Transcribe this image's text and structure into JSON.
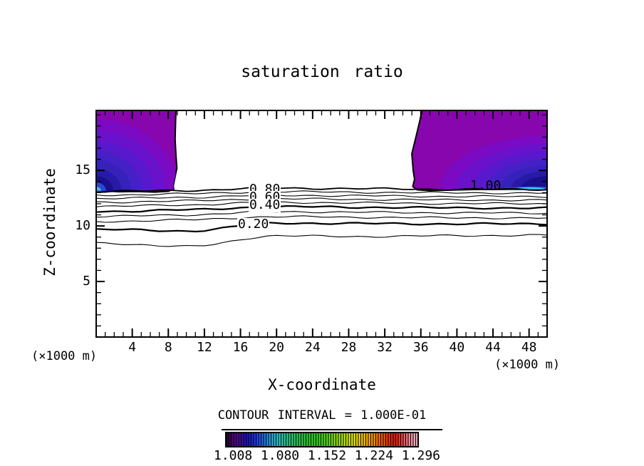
{
  "title": "saturation ratio",
  "axes": {
    "x": {
      "label": "X-coordinate",
      "unit_left": "(×1000 m)",
      "unit_right": "(×1000 m)",
      "min": 0,
      "max": 50,
      "major_ticks": [
        4,
        8,
        12,
        16,
        20,
        24,
        28,
        32,
        36,
        40,
        44,
        48
      ],
      "minor_step": 1
    },
    "z": {
      "label": "Z-coordinate",
      "min": 0,
      "max": 20.4,
      "major_ticks": [
        5,
        10,
        15
      ],
      "minor_step": 1
    }
  },
  "contour_note": "CONTOUR INTERVAL = 1.000E-01",
  "contour_labels": {
    "c080": "0.80",
    "c060": "0.60",
    "c040": "0.40",
    "c020": "0.20",
    "c100": "1.00"
  },
  "colorbar": {
    "tick_labels": [
      "1.008",
      "1.080",
      "1.152",
      "1.224",
      "1.296"
    ],
    "stops": [
      {
        "p": 0,
        "c": "#1a0428"
      },
      {
        "p": 2,
        "c": "#3c0660"
      },
      {
        "p": 5,
        "c": "#5a0a8e"
      },
      {
        "p": 8,
        "c": "#3a0ca8"
      },
      {
        "p": 11,
        "c": "#1c14c4"
      },
      {
        "p": 15,
        "c": "#2334e4"
      },
      {
        "p": 19,
        "c": "#2866e0"
      },
      {
        "p": 23,
        "c": "#28a0d8"
      },
      {
        "p": 27,
        "c": "#28c8c4"
      },
      {
        "p": 31,
        "c": "#28c894"
      },
      {
        "p": 36,
        "c": "#28c862"
      },
      {
        "p": 42,
        "c": "#2cca38"
      },
      {
        "p": 48,
        "c": "#32d220"
      },
      {
        "p": 54,
        "c": "#66d816"
      },
      {
        "p": 60,
        "c": "#a2e00e"
      },
      {
        "p": 66,
        "c": "#dce600"
      },
      {
        "p": 71,
        "c": "#ecc400"
      },
      {
        "p": 76,
        "c": "#f29c00"
      },
      {
        "p": 80,
        "c": "#f26c00"
      },
      {
        "p": 84,
        "c": "#ea3c00"
      },
      {
        "p": 88,
        "c": "#e21410"
      },
      {
        "p": 92,
        "c": "#e24848"
      },
      {
        "p": 96,
        "c": "#ea8c9a"
      },
      {
        "p": 100,
        "c": "#f0b4c0"
      }
    ]
  },
  "chart_data": {
    "type": "contour",
    "title": "saturation ratio",
    "xlabel": "X-coordinate (×1000 m)",
    "ylabel": "Z-coordinate (×1000 m)",
    "xlim": [
      0,
      50
    ],
    "ylim": [
      0,
      20.4
    ],
    "contour_interval": 0.1,
    "levels": [
      0.1,
      0.2,
      0.3,
      0.4,
      0.5,
      0.6,
      0.7,
      0.8,
      0.9,
      1.0
    ],
    "thick_levels": [
      0.2,
      0.5,
      1.0
    ],
    "labeled_levels": [
      0.2,
      0.4,
      0.6,
      0.8,
      1.0
    ],
    "x_stations": [
      0,
      10,
      20,
      30,
      40,
      50
    ],
    "contour_lines": [
      {
        "level": 1.0,
        "z": [
          13.09,
          13.2,
          13.41,
          13.35,
          13.3,
          13.28
        ]
      },
      {
        "level": 0.9,
        "z": [
          12.77,
          12.9,
          13.09,
          13.03,
          12.98,
          12.96
        ]
      },
      {
        "level": 0.8,
        "z": [
          12.45,
          12.58,
          12.77,
          12.71,
          12.66,
          12.64
        ]
      },
      {
        "level": 0.7,
        "z": [
          12.13,
          12.26,
          12.45,
          12.39,
          12.34,
          12.32
        ]
      },
      {
        "level": 0.6,
        "z": [
          11.74,
          11.9,
          12.13,
          12.07,
          12.02,
          12.0
        ]
      },
      {
        "level": 0.5,
        "z": [
          11.29,
          11.45,
          11.74,
          11.68,
          11.63,
          11.61
        ]
      },
      {
        "level": 0.4,
        "z": [
          10.84,
          11.0,
          11.29,
          11.23,
          11.18,
          11.16
        ]
      },
      {
        "level": 0.3,
        "z": [
          10.39,
          10.55,
          10.84,
          10.78,
          10.73,
          10.71
        ]
      },
      {
        "level": 0.2,
        "z": [
          9.69,
          9.55,
          10.26,
          10.22,
          10.18,
          10.2
        ]
      },
      {
        "level": 0.1,
        "z": [
          8.47,
          8.15,
          9.11,
          9.05,
          9.13,
          9.17
        ]
      }
    ],
    "filled_plumes": [
      {
        "name": "left-supersaturated-plume",
        "value_range": [
          1.0,
          1.33
        ],
        "boundary_x_z": [
          [
            0,
            20.4
          ],
          [
            8.85,
            20.4
          ],
          [
            8.8,
            19.2
          ],
          [
            8.75,
            17.8
          ],
          [
            8.85,
            16.4
          ],
          [
            8.95,
            15.2
          ],
          [
            8.7,
            14.2
          ],
          [
            8.55,
            13.6
          ],
          [
            8.6,
            13.32
          ],
          [
            8.0,
            13.12
          ],
          [
            6.5,
            13.05
          ],
          [
            4.5,
            13.1
          ],
          [
            2.5,
            13.08
          ],
          [
            1.0,
            13.15
          ],
          [
            0,
            13.18
          ]
        ]
      },
      {
        "name": "right-supersaturated-plume",
        "value_range": [
          1.0,
          1.33
        ],
        "boundary_x_z": [
          [
            36.15,
            20.4
          ],
          [
            50,
            20.4
          ],
          [
            50,
            13.3
          ],
          [
            46,
            13.3
          ],
          [
            42,
            13.28
          ],
          [
            39,
            13.22
          ],
          [
            37,
            13.18
          ],
          [
            35.6,
            13.25
          ],
          [
            35.1,
            13.55
          ],
          [
            35.3,
            14.2
          ],
          [
            35.15,
            15.0
          ],
          [
            35.0,
            16.5
          ],
          [
            35.6,
            18.5
          ]
        ]
      }
    ],
    "fill_band_colors": [
      "#8806ae",
      "#7a0ac4",
      "#6911cb",
      "#5719cb",
      "#4520c6",
      "#3622bb",
      "#281aa6",
      "#1b0f8e",
      "#2a47de",
      "#35c0e8"
    ],
    "colorbar_values": [
      1.008,
      1.08,
      1.152,
      1.224,
      1.296
    ]
  }
}
